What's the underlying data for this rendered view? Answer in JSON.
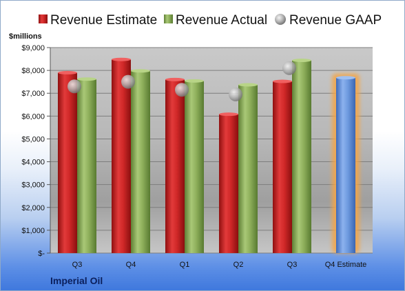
{
  "chart_data": {
    "type": "bar",
    "unit_label": "$millions",
    "footer": "Imperial Oil",
    "categories": [
      "Q3",
      "Q4",
      "Q1",
      "Q2",
      "Q3",
      "Q4 Estimate"
    ],
    "ylim": [
      0,
      9000
    ],
    "y_ticks": [
      {
        "value": 0,
        "label": "$-"
      },
      {
        "value": 1000,
        "label": "$1,000"
      },
      {
        "value": 2000,
        "label": "$2,000"
      },
      {
        "value": 3000,
        "label": "$3,000"
      },
      {
        "value": 4000,
        "label": "$4,000"
      },
      {
        "value": 5000,
        "label": "$5,000"
      },
      {
        "value": 6000,
        "label": "$6,000"
      },
      {
        "value": 7000,
        "label": "$7,000"
      },
      {
        "value": 8000,
        "label": "$8,000"
      },
      {
        "value": 9000,
        "label": "$9,000"
      }
    ],
    "grid": true,
    "legend_position": "top",
    "series": [
      {
        "name": "Revenue Estimate",
        "kind": "bar",
        "color": "#d42a2a",
        "values": [
          7900,
          8480,
          7600,
          6080,
          7520,
          null
        ]
      },
      {
        "name": "Revenue Actual",
        "kind": "bar",
        "color": "#8db05a",
        "values": [
          7620,
          7980,
          7540,
          7370,
          8440,
          null
        ]
      },
      {
        "name": "Revenue GAAP",
        "kind": "marker",
        "color": "#b8b8b8",
        "values": [
          7300,
          7500,
          7150,
          6950,
          8100,
          null
        ]
      }
    ],
    "estimate": {
      "category_index": 5,
      "value": 7680,
      "color": "#6f9be0",
      "glow": "#f5a545"
    }
  }
}
